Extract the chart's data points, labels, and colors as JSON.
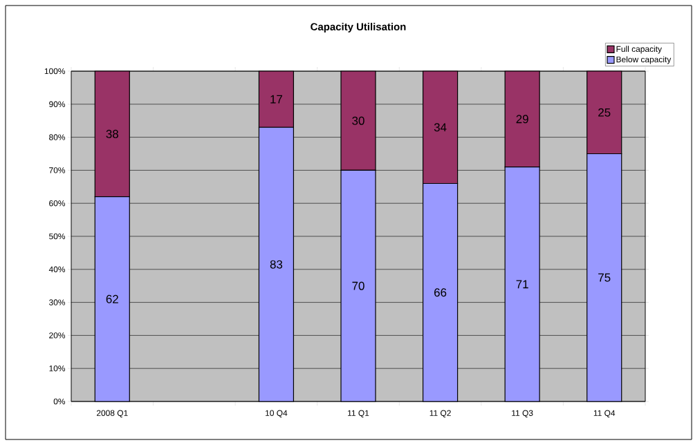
{
  "chart_data": {
    "type": "bar",
    "title": "Capacity Utilisation",
    "stacked": true,
    "categories": [
      "2008 Q1",
      null,
      "10 Q4",
      "11 Q1",
      "11 Q2",
      "11 Q3",
      "11 Q4"
    ],
    "series": [
      {
        "name": "Below capacity",
        "color": "#9999ff",
        "values": [
          62,
          null,
          83,
          70,
          66,
          71,
          75
        ]
      },
      {
        "name": "Full capacity",
        "color": "#993366",
        "values": [
          38,
          null,
          17,
          30,
          34,
          29,
          25
        ]
      }
    ],
    "ylim": [
      0,
      100
    ],
    "yticks": [
      {
        "value": 0,
        "label": "0%"
      },
      {
        "value": 10,
        "label": "10%"
      },
      {
        "value": 20,
        "label": "20%"
      },
      {
        "value": 30,
        "label": "30%"
      },
      {
        "value": 40,
        "label": "40%"
      },
      {
        "value": 50,
        "label": "50%"
      },
      {
        "value": 60,
        "label": "60%"
      },
      {
        "value": 70,
        "label": "70%"
      },
      {
        "value": 80,
        "label": "80%"
      },
      {
        "value": 90,
        "label": "90%"
      },
      {
        "value": 100,
        "label": "100%"
      }
    ],
    "grid": "y",
    "legend": "top right",
    "data_labels": true
  }
}
